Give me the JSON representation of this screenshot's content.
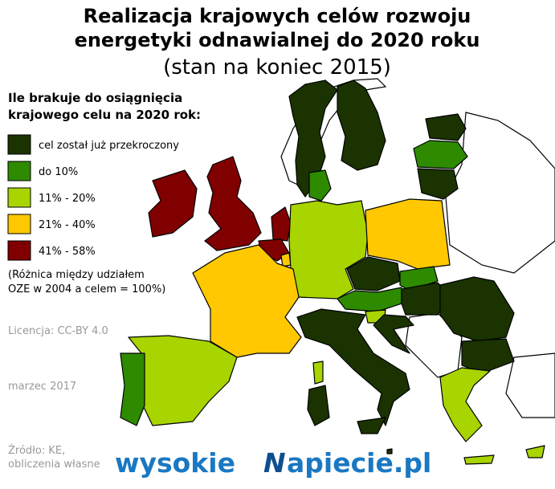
{
  "title": [
    "Realizacja krajowych celów rozwoju",
    "energetyki odnawialnej do 2020 roku"
  ],
  "subtitle": "(stan na koniec 2015)",
  "legend": {
    "title": [
      "Ile brakuje do osiągnięcia",
      "krajowego celu na 2020 rok:"
    ],
    "items": [
      {
        "label": "cel został już przekroczony",
        "color": "#1a3300"
      },
      {
        "label": "do 10%",
        "color": "#2e8b00"
      },
      {
        "label": "11% - 20%",
        "color": "#a8d400"
      },
      {
        "label": "21% - 40%",
        "color": "#ffc800"
      },
      {
        "label": "41% - 58%",
        "color": "#800000"
      }
    ],
    "note": [
      "(Różnica między udziałem",
      "OZE w 2004 a celem = 100%)"
    ]
  },
  "license": "Licencja: CC-BY 4.0",
  "date": "marzec 2017",
  "source": [
    "Źródło: KE,",
    "obliczenia własne"
  ],
  "logo": [
    "wysokie",
    "N",
    "apiecie.pl"
  ]
}
